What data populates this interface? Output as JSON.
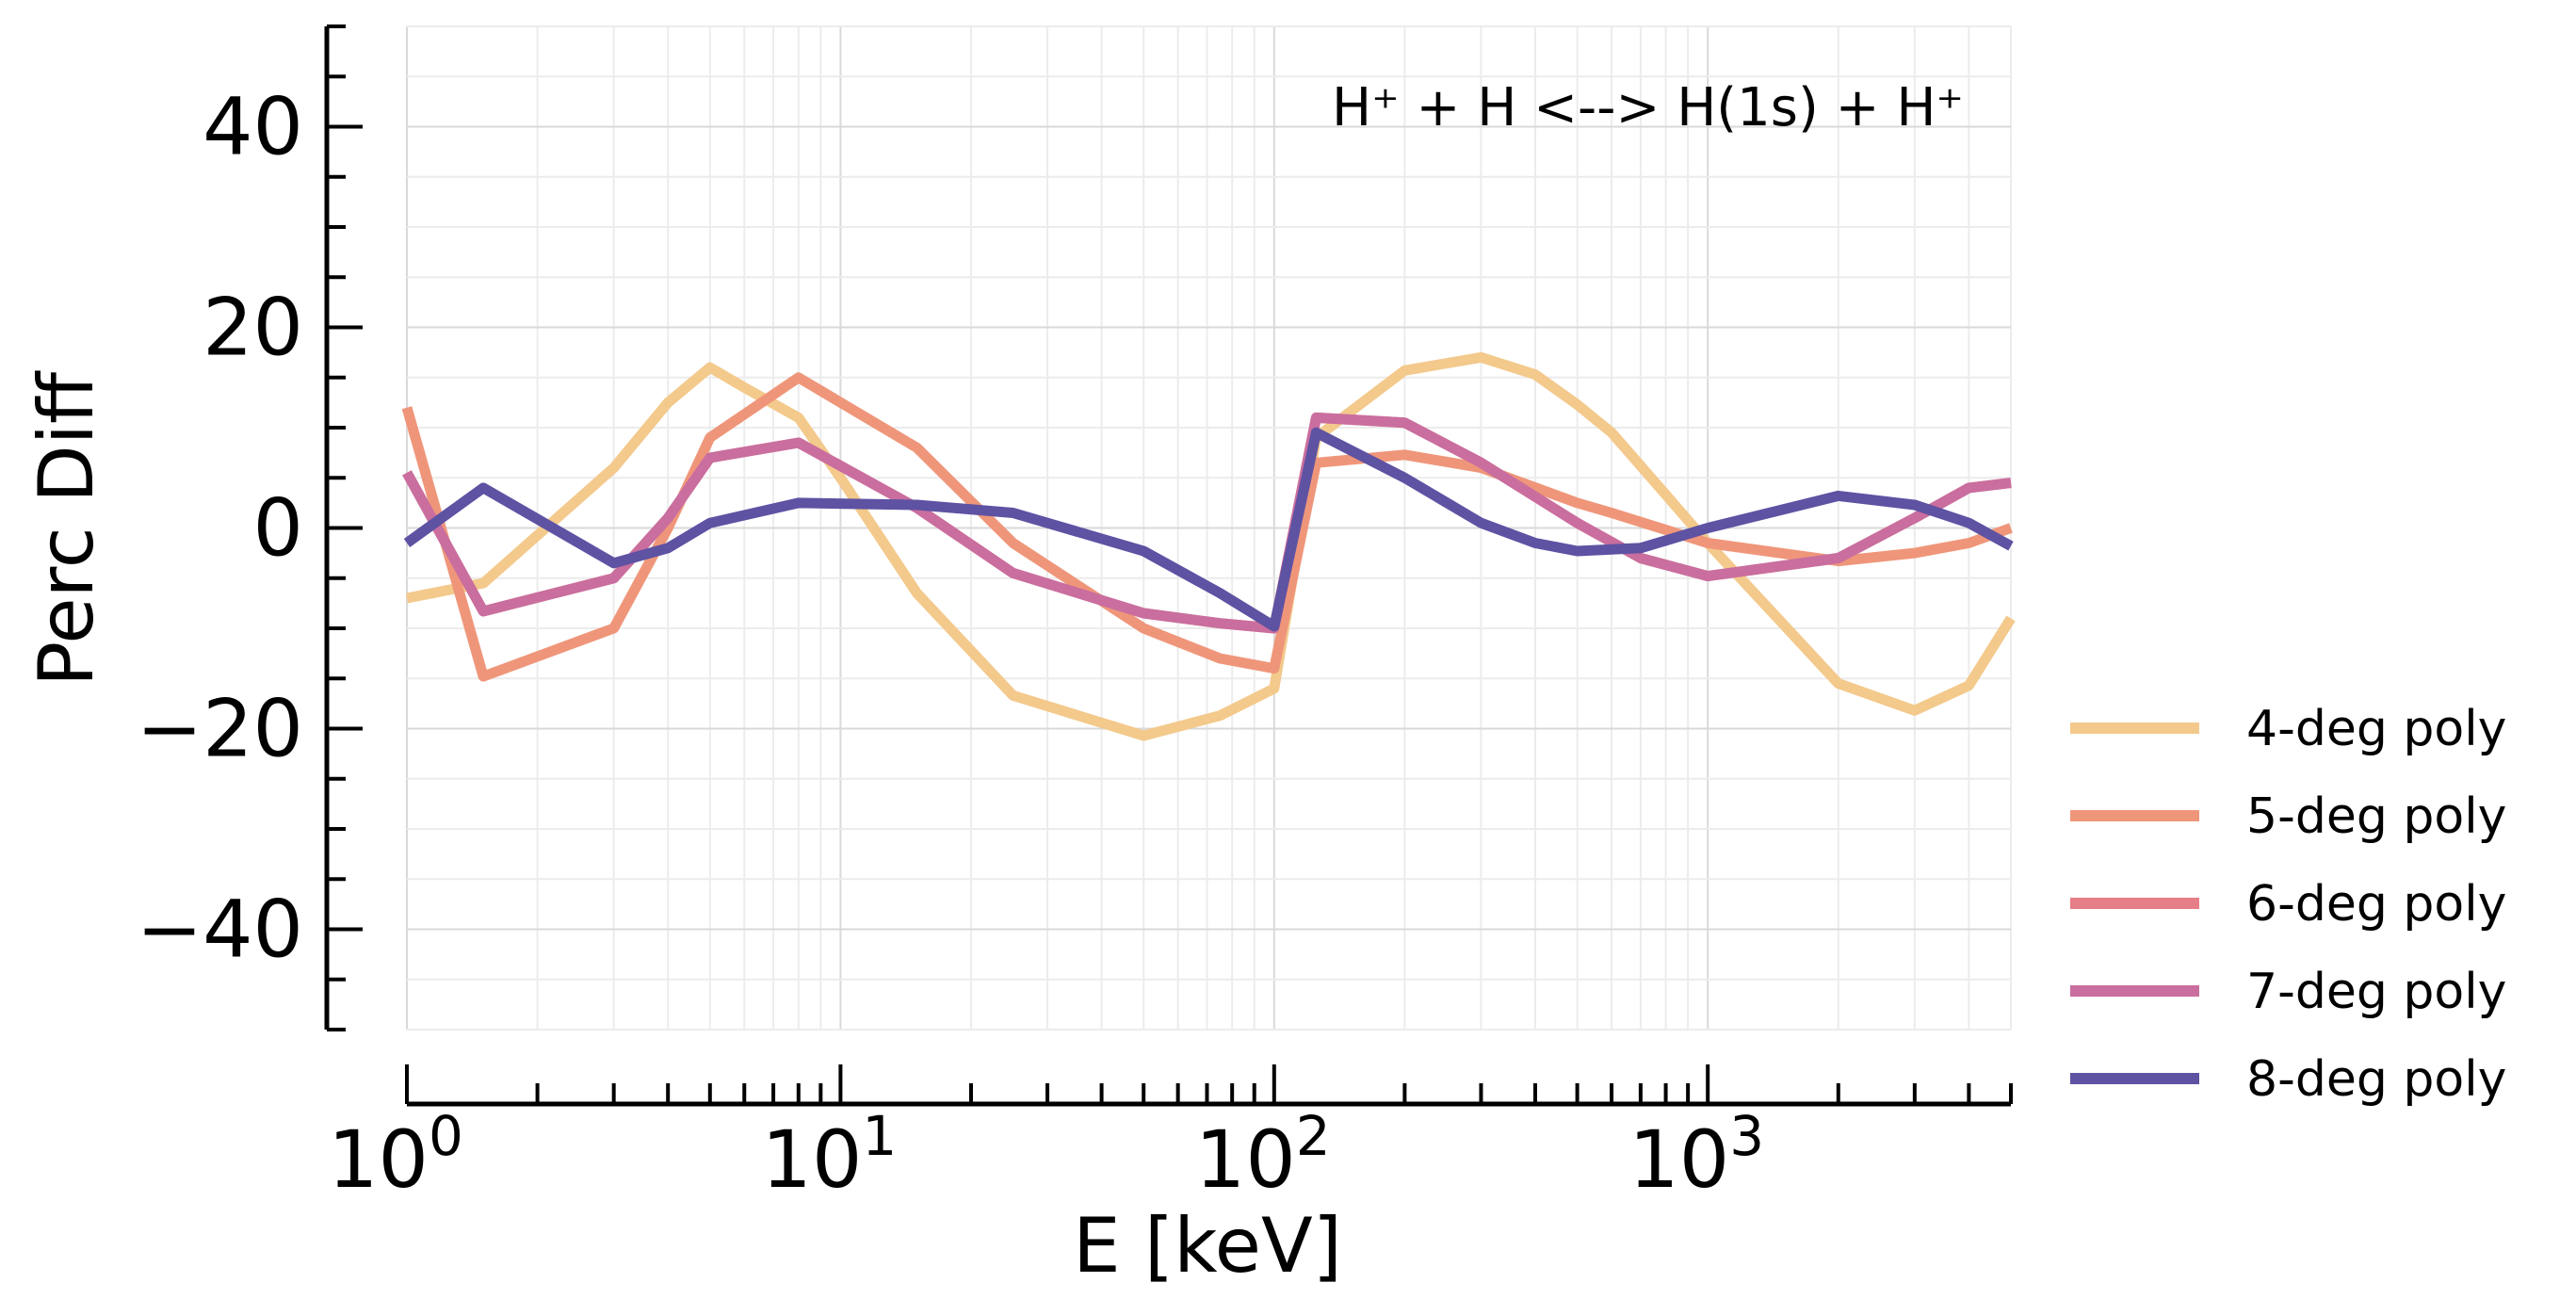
{
  "chart_data": {
    "type": "line",
    "annotation": "H⁺ + H <--> H(1s) + H⁺",
    "xlabel": "E [keV]",
    "ylabel": "Perc Diff",
    "xscale": "log",
    "xlim": [
      1,
      5000
    ],
    "ylim": [
      -50,
      50
    ],
    "x_ticks": [
      {
        "value": 1,
        "base": "10",
        "exp": "0"
      },
      {
        "value": 10,
        "base": "10",
        "exp": "1"
      },
      {
        "value": 100,
        "base": "10",
        "exp": "2"
      },
      {
        "value": 1000,
        "base": "10",
        "exp": "3"
      }
    ],
    "y_ticks": [
      {
        "value": -40,
        "label": "−40"
      },
      {
        "value": -20,
        "label": "−20"
      },
      {
        "value": 0,
        "label": "0"
      },
      {
        "value": 20,
        "label": "20"
      },
      {
        "value": 40,
        "label": "40"
      }
    ],
    "grid": true,
    "legend_position": "outside-right",
    "series": [
      {
        "name": "4-deg poly",
        "color": "#f3c98c",
        "points": [
          [
            1,
            -7
          ],
          [
            1.5,
            -5.5
          ],
          [
            3,
            6
          ],
          [
            4,
            12.5
          ],
          [
            5,
            16
          ],
          [
            6,
            14
          ],
          [
            8,
            11
          ],
          [
            10,
            5
          ],
          [
            15,
            -6.5
          ],
          [
            25,
            -16.7
          ],
          [
            50,
            -20.7
          ],
          [
            75,
            -18.7
          ],
          [
            100,
            -16
          ],
          [
            125,
            9
          ],
          [
            200,
            15.7
          ],
          [
            300,
            17
          ],
          [
            400,
            15.3
          ],
          [
            500,
            12.3
          ],
          [
            600,
            9.5
          ],
          [
            700,
            6.2
          ],
          [
            1000,
            -1.5
          ],
          [
            2000,
            -15.5
          ],
          [
            3000,
            -18.2
          ],
          [
            4000,
            -15.7
          ],
          [
            5000,
            -9
          ]
        ]
      },
      {
        "name": "5-deg poly",
        "color": "#ef967a",
        "points": [
          [
            1,
            12
          ],
          [
            1.5,
            -14.8
          ],
          [
            3,
            -10
          ],
          [
            4,
            0
          ],
          [
            5,
            9
          ],
          [
            8,
            15
          ],
          [
            15,
            8
          ],
          [
            25,
            -1.5
          ],
          [
            50,
            -10
          ],
          [
            75,
            -13
          ],
          [
            100,
            -14
          ],
          [
            125,
            6.5
          ],
          [
            200,
            7.3
          ],
          [
            300,
            6
          ],
          [
            500,
            2.5
          ],
          [
            600,
            1.5
          ],
          [
            1000,
            -1.5
          ],
          [
            2000,
            -3.3
          ],
          [
            3000,
            -2.5
          ],
          [
            4000,
            -1.5
          ],
          [
            5000,
            0
          ]
        ]
      },
      {
        "name": "6-deg poly",
        "color": "#e57e86",
        "points": [
          [
            1,
            5.5
          ],
          [
            1.5,
            -8.3
          ],
          [
            3,
            -5
          ],
          [
            4,
            1
          ],
          [
            5,
            7
          ],
          [
            8,
            8.5
          ],
          [
            15,
            2
          ],
          [
            25,
            -4.5
          ],
          [
            50,
            -8.5
          ],
          [
            75,
            -9.5
          ],
          [
            100,
            -10
          ],
          [
            125,
            11
          ],
          [
            200,
            10.5
          ],
          [
            300,
            6.5
          ],
          [
            500,
            0.5
          ],
          [
            700,
            -3
          ],
          [
            1000,
            -4.8
          ],
          [
            2000,
            -3
          ],
          [
            3000,
            1
          ],
          [
            4000,
            4
          ],
          [
            5000,
            4.5
          ]
        ]
      },
      {
        "name": "7-deg poly",
        "color": "#c96e9e",
        "points": [
          [
            1,
            5.5
          ],
          [
            1.5,
            -8.3
          ],
          [
            3,
            -5
          ],
          [
            4,
            1
          ],
          [
            5,
            7
          ],
          [
            8,
            8.5
          ],
          [
            15,
            2
          ],
          [
            25,
            -4.5
          ],
          [
            50,
            -8.5
          ],
          [
            75,
            -9.5
          ],
          [
            100,
            -10
          ],
          [
            125,
            11
          ],
          [
            200,
            10.5
          ],
          [
            300,
            6.5
          ],
          [
            500,
            0.5
          ],
          [
            700,
            -3
          ],
          [
            1000,
            -4.8
          ],
          [
            2000,
            -3
          ],
          [
            3000,
            1
          ],
          [
            4000,
            4
          ],
          [
            5000,
            4.5
          ]
        ]
      },
      {
        "name": "8-deg poly",
        "color": "#5e52a3",
        "points": [
          [
            1,
            -1.5
          ],
          [
            1.5,
            4
          ],
          [
            3,
            -3.5
          ],
          [
            4,
            -2
          ],
          [
            5,
            0.5
          ],
          [
            8,
            2.5
          ],
          [
            15,
            2.3
          ],
          [
            25,
            1.5
          ],
          [
            50,
            -2.3
          ],
          [
            75,
            -6.5
          ],
          [
            100,
            -9.8
          ],
          [
            125,
            9.5
          ],
          [
            200,
            5
          ],
          [
            300,
            0.5
          ],
          [
            400,
            -1.5
          ],
          [
            500,
            -2.3
          ],
          [
            700,
            -2
          ],
          [
            1000,
            0
          ],
          [
            2000,
            3.2
          ],
          [
            3000,
            2.3
          ],
          [
            4000,
            0.5
          ],
          [
            5000,
            -1.8
          ]
        ]
      }
    ]
  }
}
